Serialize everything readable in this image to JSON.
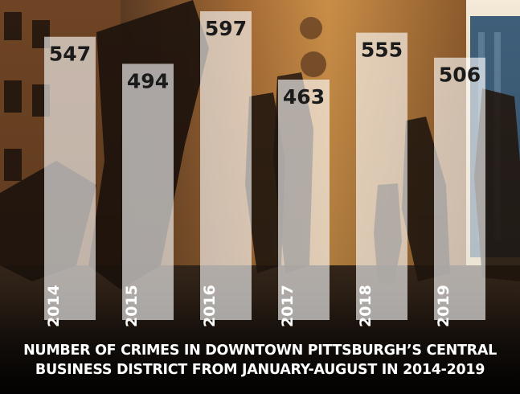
{
  "caption": {
    "line1": "NUMBER OF CRIMES IN DOWNTOWN PITTSBURGH’S CENTRAL",
    "line2": "BUSINESS DISTRICT FROM JANUARY-AUGUST IN 2014-2019"
  },
  "colors": {
    "bar_fill": "#ffffff",
    "value_text": "#1b1b1b",
    "year_text": "#ffffff",
    "caption_text": "#ffffff"
  },
  "chart_data": {
    "type": "bar",
    "categories": [
      "2014",
      "2015",
      "2016",
      "2017",
      "2018",
      "2019"
    ],
    "values": [
      547,
      494,
      597,
      463,
      555,
      506
    ],
    "title": "NUMBER OF CRIMES IN DOWNTOWN PITTSBURGH’S CENTRAL BUSINESS DISTRICT FROM JANUARY-AUGUST IN 2014-2019",
    "xlabel": "",
    "ylabel": "",
    "grid": false,
    "legend": "none"
  }
}
